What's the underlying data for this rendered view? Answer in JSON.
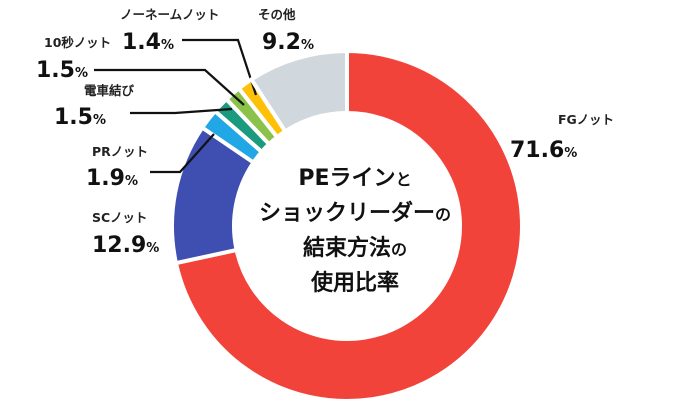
{
  "chart_data": {
    "type": "pie",
    "subtype": "donut",
    "title_lines": [
      {
        "big": "PEライン",
        "small": "と"
      },
      {
        "big": "ショックリーダー",
        "small": "の"
      },
      {
        "big": "結束方法",
        "small": "の"
      },
      {
        "big": "使用比率",
        "small": ""
      }
    ],
    "slices": [
      {
        "name": "FGノット",
        "value": 71.6,
        "color": "#f2433a"
      },
      {
        "name": "SCノット",
        "value": 12.9,
        "color": "#3f4fb1"
      },
      {
        "name": "PRノット",
        "value": 1.9,
        "color": "#22a7e6"
      },
      {
        "name": "電車結び",
        "value": 1.5,
        "color": "#1b9a7e"
      },
      {
        "name": "10秒ノット",
        "value": 1.5,
        "color": "#8bc34a"
      },
      {
        "name": "ノーネームノット",
        "value": 1.4,
        "color": "#ffc107"
      },
      {
        "name": "その他",
        "value": 9.2,
        "color": "#d0d8de"
      }
    ],
    "value_suffix": "%"
  }
}
